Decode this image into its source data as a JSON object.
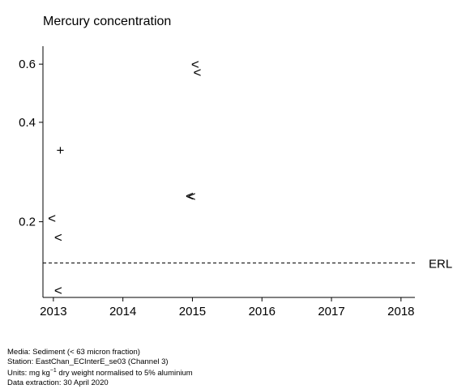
{
  "chart_data": {
    "type": "scatter",
    "title": "Mercury concentration",
    "xlabel": "",
    "ylabel": "",
    "xlim": [
      2012.85,
      2018.2
    ],
    "ylim_log": [
      0.118,
      0.68
    ],
    "y_scale": "log",
    "grid": false,
    "x_ticks": [
      2013,
      2014,
      2015,
      2016,
      2017,
      2018
    ],
    "x_tick_labels": [
      "2013",
      "2014",
      "2015",
      "2016",
      "2017",
      "2018"
    ],
    "y_ticks": [
      0.2,
      0.4,
      0.6
    ],
    "y_tick_labels": [
      "0.2",
      "0.4",
      "0.6"
    ],
    "points": [
      {
        "x": 2012.98,
        "y": 0.205,
        "symbol": "<"
      },
      {
        "x": 2013.07,
        "y": 0.18,
        "symbol": "<"
      },
      {
        "x": 2013.07,
        "y": 0.124,
        "symbol": "<"
      },
      {
        "x": 2013.1,
        "y": 0.33,
        "symbol": "+"
      },
      {
        "x": 2014.96,
        "y": 0.24,
        "symbol": "<"
      },
      {
        "x": 2014.99,
        "y": 0.239,
        "symbol": "<"
      },
      {
        "x": 2015.04,
        "y": 0.6,
        "symbol": "<"
      },
      {
        "x": 2015.07,
        "y": 0.568,
        "symbol": "<"
      }
    ],
    "reference_lines": [
      {
        "label": "ERL",
        "y": 0.15,
        "style": "dashed"
      }
    ]
  },
  "footer": {
    "media": "Media: Sediment (< 63 micron fraction)",
    "station": "Station: EastChan_ECInterE_se03 (Channel 3)",
    "units_prefix": "Units:  mg kg",
    "units_sup": "−1",
    "units_suffix": " dry weight normalised to 5% aluminium",
    "extraction": "Data extraction: 30 April 2020"
  }
}
